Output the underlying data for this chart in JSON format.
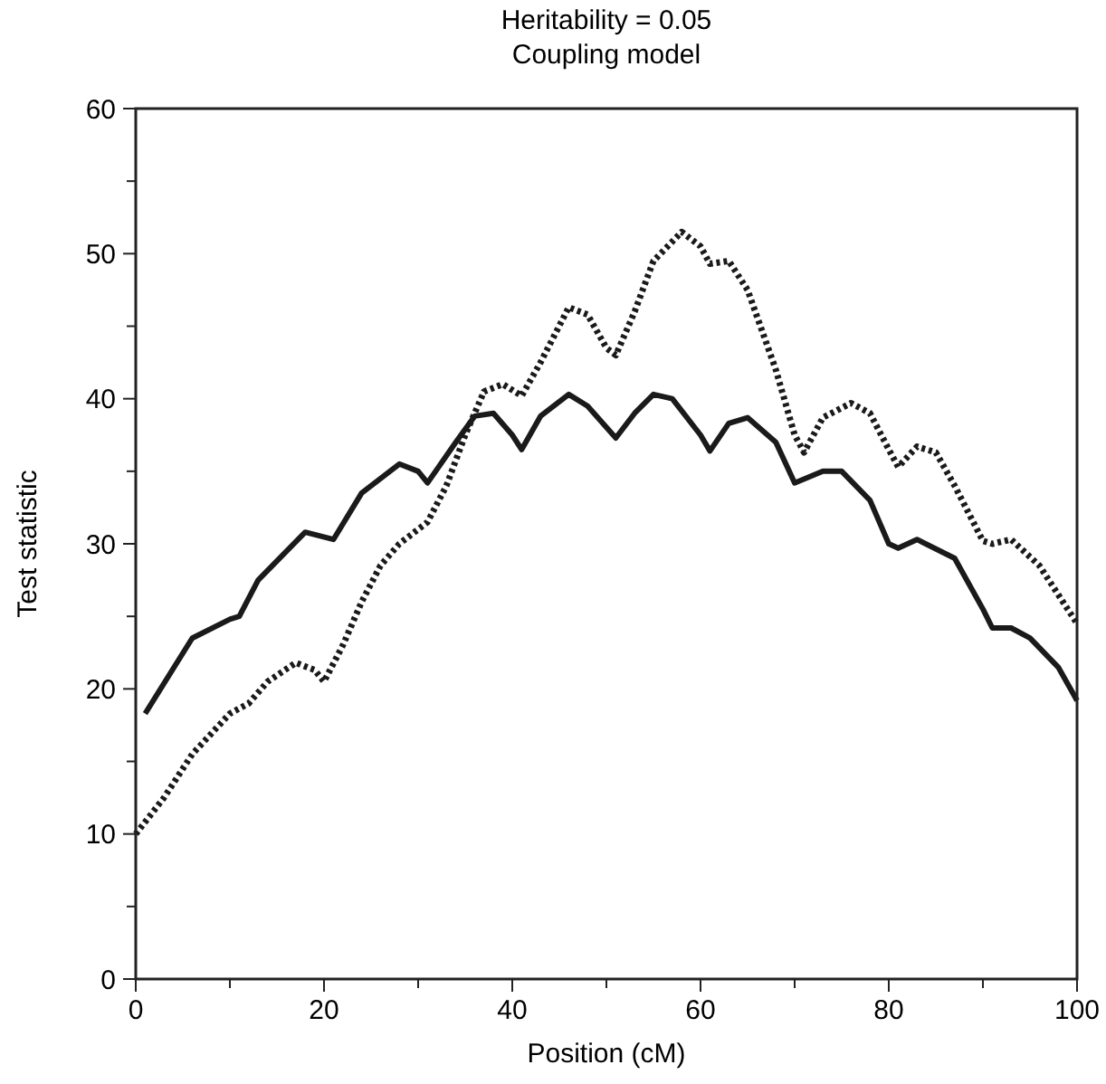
{
  "chart_data": {
    "type": "line",
    "title": "Heritability = 0.05",
    "subtitle": "Coupling model",
    "xlabel": "Position (cM)",
    "ylabel": "Test statistic",
    "xlim": [
      0,
      100
    ],
    "ylim": [
      0,
      60
    ],
    "xticks": [
      0,
      {
        "value": 10,
        "label": null
      },
      20,
      {
        "value": 30,
        "label": null
      },
      40,
      {
        "value": 50,
        "label": null
      },
      60,
      {
        "value": 70,
        "label": null
      },
      80,
      {
        "value": 90,
        "label": null
      },
      100
    ],
    "yticks": [
      0,
      {
        "value": 5,
        "label": null
      },
      10,
      {
        "value": 15,
        "label": null
      },
      20,
      {
        "value": 25,
        "label": null
      },
      30,
      {
        "value": 35,
        "label": null
      },
      40,
      {
        "value": 45,
        "label": null
      },
      50,
      {
        "value": 55,
        "label": null
      },
      60
    ],
    "grid": false,
    "marker": "none",
    "series": [
      {
        "color": "#1a1a1a",
        "line_style": "solid",
        "x": [
          1,
          6,
          10,
          11,
          13,
          18,
          21,
          24,
          28,
          30,
          31,
          34,
          36,
          38,
          40,
          41,
          43,
          46,
          48,
          51,
          53,
          55,
          57,
          60,
          61,
          63,
          65,
          68,
          70,
          73,
          75,
          78,
          80,
          81,
          83,
          87,
          90,
          91,
          93,
          95,
          98,
          100
        ],
        "values": [
          18.3,
          23.5,
          24.8,
          25,
          27.5,
          30.8,
          30.3,
          33.5,
          35.5,
          35,
          34.2,
          37,
          38.8,
          39,
          37.5,
          36.5,
          38.8,
          40.3,
          39.5,
          37.3,
          39,
          40.3,
          40,
          37.5,
          36.4,
          38.3,
          38.7,
          37,
          34.2,
          35,
          35,
          33,
          30,
          29.7,
          30.3,
          29,
          25.5,
          24.2,
          24.2,
          23.5,
          21.5,
          19.2
        ]
      },
      {
        "color": "#1a1a1a",
        "line_style": "dotted",
        "x": [
          0,
          3,
          6,
          10,
          12,
          14,
          17,
          19,
          20,
          22,
          24,
          26,
          28,
          31,
          33,
          35,
          37,
          39,
          41,
          43,
          46,
          48,
          50,
          51,
          53,
          55,
          58,
          60,
          61,
          63,
          65,
          68,
          70,
          71,
          73,
          76,
          78,
          80,
          81,
          83,
          85,
          87,
          90,
          91,
          93,
          96,
          99,
          100
        ],
        "values": [
          10,
          12.5,
          15.5,
          18.3,
          19,
          20.5,
          21.8,
          21.3,
          20.5,
          23,
          26,
          28.5,
          30,
          31.5,
          34,
          37.5,
          40.5,
          41,
          40.2,
          42.5,
          46.3,
          45.8,
          43.5,
          43,
          46,
          49.5,
          51.5,
          50.5,
          49.3,
          49.5,
          47.5,
          42,
          37.5,
          36.3,
          38.7,
          39.7,
          39,
          36.5,
          35.3,
          36.7,
          36.3,
          34,
          30.2,
          30,
          30.3,
          28.5,
          25.5,
          24.5
        ]
      }
    ]
  }
}
